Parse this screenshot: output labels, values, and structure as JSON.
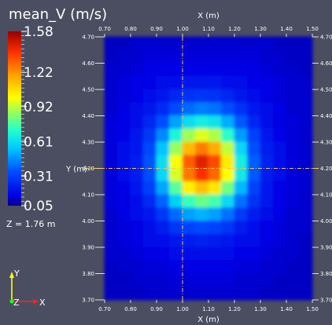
{
  "scalar_bar": {
    "title": "mean_V (m/s)",
    "labels": [
      "1.58",
      "1.22",
      "0.92",
      "0.61",
      "0.31",
      "0.05"
    ]
  },
  "slice_info": "Z = 1.76 m",
  "axes_triad": {
    "y": "Y",
    "z": "Z",
    "x": "X"
  },
  "chart_data": {
    "type": "heatmap",
    "title": "mean_V (m/s)",
    "xlabel": "X (m)",
    "ylabel": "Y (m)",
    "xlim": [
      0.7,
      1.5
    ],
    "ylim": [
      3.7,
      4.7
    ],
    "x_ticks": [
      "0.70",
      "0.80",
      "0.90",
      "1.00",
      "1.10",
      "1.20",
      "1.30",
      "1.40",
      "1.50"
    ],
    "y_ticks": [
      "4.70",
      "4.60",
      "4.50",
      "4.40",
      "4.30",
      "4.20",
      "4.10",
      "4.00",
      "3.90",
      "3.80",
      "3.70"
    ],
    "colorbar_range": [
      0.05,
      1.58
    ],
    "colorbar_ticks": [
      1.58,
      1.22,
      0.92,
      0.61,
      0.31,
      0.05
    ],
    "crosshair": {
      "x": 1.0,
      "y": 4.2
    },
    "x": [
      0.725,
      0.775,
      0.825,
      0.875,
      0.925,
      0.975,
      1.025,
      1.075,
      1.125,
      1.175,
      1.225,
      1.275,
      1.325,
      1.375,
      1.425,
      1.475
    ],
    "y": [
      4.675,
      4.625,
      4.575,
      4.525,
      4.475,
      4.425,
      4.375,
      4.325,
      4.275,
      4.225,
      4.175,
      4.125,
      4.075,
      4.025,
      3.975,
      3.925,
      3.875,
      3.825,
      3.775,
      3.725
    ],
    "values": [
      [
        0.11,
        0.11,
        0.12,
        0.12,
        0.12,
        0.12,
        0.12,
        0.12,
        0.12,
        0.12,
        0.12,
        0.12,
        0.12,
        0.11,
        0.11,
        0.11
      ],
      [
        0.11,
        0.12,
        0.12,
        0.13,
        0.13,
        0.13,
        0.13,
        0.13,
        0.13,
        0.13,
        0.13,
        0.13,
        0.12,
        0.12,
        0.11,
        0.11
      ],
      [
        0.12,
        0.12,
        0.13,
        0.14,
        0.14,
        0.15,
        0.15,
        0.15,
        0.15,
        0.15,
        0.14,
        0.14,
        0.13,
        0.12,
        0.12,
        0.11
      ],
      [
        0.12,
        0.13,
        0.14,
        0.15,
        0.16,
        0.18,
        0.19,
        0.19,
        0.19,
        0.18,
        0.16,
        0.15,
        0.14,
        0.13,
        0.12,
        0.12
      ],
      [
        0.12,
        0.13,
        0.15,
        0.17,
        0.2,
        0.24,
        0.27,
        0.28,
        0.27,
        0.24,
        0.2,
        0.17,
        0.15,
        0.13,
        0.12,
        0.12
      ],
      [
        0.12,
        0.14,
        0.16,
        0.2,
        0.26,
        0.34,
        0.4,
        0.43,
        0.41,
        0.35,
        0.27,
        0.21,
        0.16,
        0.14,
        0.12,
        0.12
      ],
      [
        0.13,
        0.14,
        0.18,
        0.24,
        0.35,
        0.49,
        0.61,
        0.66,
        0.63,
        0.51,
        0.37,
        0.25,
        0.18,
        0.14,
        0.13,
        0.12
      ],
      [
        0.13,
        0.15,
        0.2,
        0.29,
        0.45,
        0.68,
        0.88,
        0.96,
        0.9,
        0.72,
        0.48,
        0.31,
        0.2,
        0.15,
        0.13,
        0.12
      ],
      [
        0.13,
        0.16,
        0.21,
        0.33,
        0.55,
        0.87,
        1.14,
        1.26,
        1.17,
        0.92,
        0.59,
        0.35,
        0.22,
        0.16,
        0.13,
        0.12
      ],
      [
        0.13,
        0.16,
        0.22,
        0.36,
        0.61,
        0.99,
        1.32,
        1.45,
        1.35,
        1.04,
        0.66,
        0.38,
        0.23,
        0.16,
        0.13,
        0.12
      ],
      [
        0.13,
        0.16,
        0.22,
        0.35,
        0.59,
        0.95,
        1.27,
        1.4,
        1.3,
        1.0,
        0.64,
        0.37,
        0.22,
        0.16,
        0.13,
        0.12
      ],
      [
        0.13,
        0.15,
        0.2,
        0.31,
        0.5,
        0.78,
        1.03,
        1.13,
        1.05,
        0.82,
        0.53,
        0.32,
        0.21,
        0.15,
        0.13,
        0.12
      ],
      [
        0.13,
        0.15,
        0.18,
        0.26,
        0.39,
        0.58,
        0.74,
        0.81,
        0.76,
        0.6,
        0.41,
        0.27,
        0.19,
        0.14,
        0.13,
        0.12
      ],
      [
        0.12,
        0.14,
        0.17,
        0.21,
        0.29,
        0.4,
        0.49,
        0.52,
        0.49,
        0.41,
        0.3,
        0.22,
        0.17,
        0.14,
        0.12,
        0.12
      ],
      [
        0.12,
        0.13,
        0.15,
        0.18,
        0.22,
        0.28,
        0.32,
        0.34,
        0.32,
        0.28,
        0.22,
        0.18,
        0.15,
        0.13,
        0.12,
        0.12
      ],
      [
        0.12,
        0.13,
        0.14,
        0.16,
        0.18,
        0.2,
        0.22,
        0.23,
        0.22,
        0.2,
        0.18,
        0.16,
        0.14,
        0.13,
        0.12,
        0.11
      ],
      [
        0.12,
        0.12,
        0.13,
        0.14,
        0.15,
        0.16,
        0.17,
        0.17,
        0.17,
        0.16,
        0.15,
        0.14,
        0.13,
        0.12,
        0.12,
        0.11
      ],
      [
        0.11,
        0.12,
        0.12,
        0.13,
        0.13,
        0.14,
        0.14,
        0.14,
        0.14,
        0.14,
        0.13,
        0.13,
        0.12,
        0.12,
        0.11,
        0.11
      ],
      [
        0.11,
        0.11,
        0.12,
        0.12,
        0.12,
        0.13,
        0.13,
        0.13,
        0.13,
        0.13,
        0.12,
        0.12,
        0.12,
        0.11,
        0.11,
        0.11
      ],
      [
        0.11,
        0.11,
        0.11,
        0.12,
        0.12,
        0.12,
        0.12,
        0.12,
        0.12,
        0.12,
        0.12,
        0.12,
        0.11,
        0.11,
        0.11,
        0.11
      ]
    ]
  }
}
